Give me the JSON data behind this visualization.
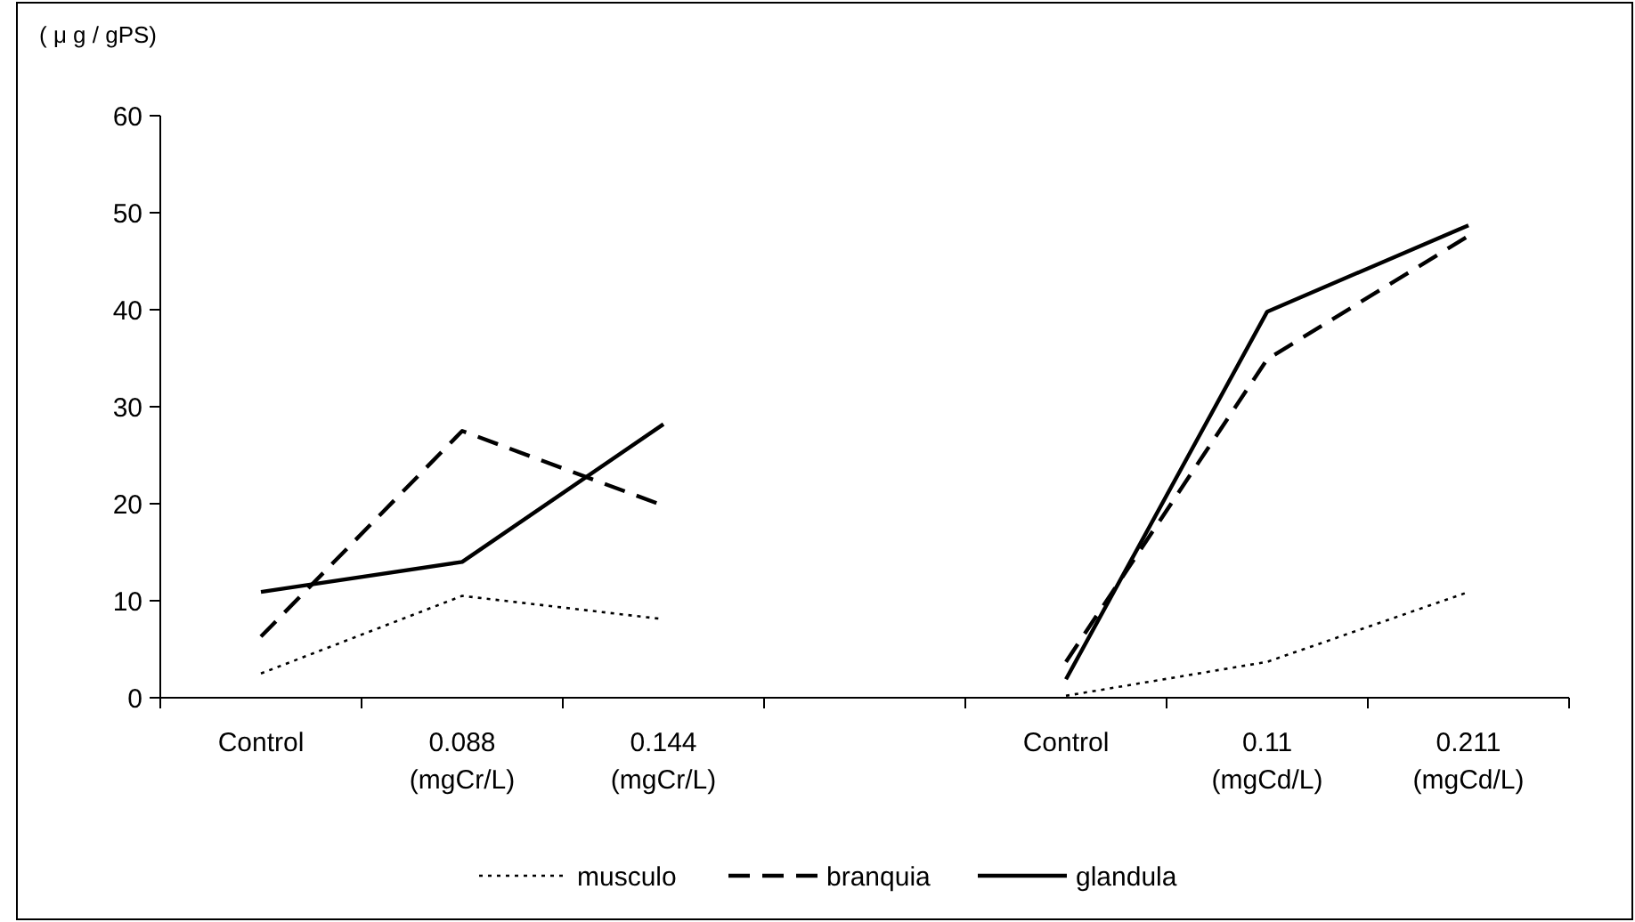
{
  "chart_data": {
    "type": "line",
    "ylabel": "( μ g / gPS)",
    "categories": [
      "Control",
      "0.088\n(mgCr/L)",
      "0.144\n(mgCr/L)",
      null,
      "Control",
      "0.11\n(mgCd/L)",
      "0.211\n(mgCd/L)"
    ],
    "ylim": [
      0,
      60
    ],
    "yticks": [
      0,
      10,
      20,
      30,
      40,
      50,
      60
    ],
    "legend": "bottom",
    "series": [
      {
        "name": "musculo",
        "color": "#000000",
        "line_style": "dotted",
        "values": [
          2.5,
          10.5,
          8.1,
          null,
          0.2,
          3.7,
          10.9
        ]
      },
      {
        "name": "branquia",
        "color": "#000000",
        "line_style": "dashed",
        "values": [
          6.3,
          27.5,
          19.8,
          null,
          3.7,
          34.9,
          47.6
        ]
      },
      {
        "name": "glandula",
        "color": "#000000",
        "line_style": "solid",
        "values": [
          10.9,
          14.0,
          28.2,
          null,
          1.9,
          39.8,
          48.7
        ]
      }
    ]
  }
}
